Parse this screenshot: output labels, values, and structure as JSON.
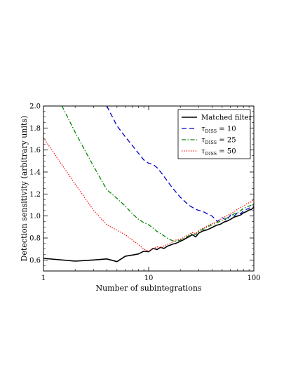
{
  "chart_data": {
    "type": "line",
    "title": "",
    "xlabel": "Number of subintegrations",
    "ylabel": "Detection sensitivity (arbitrary units)",
    "xscale": "log",
    "xlim": [
      1,
      100
    ],
    "ylim": [
      0.5,
      2.0
    ],
    "x_ticks": [
      1,
      10,
      100
    ],
    "x_tick_labels": [
      "1",
      "10",
      "100"
    ],
    "y_ticks": [
      0.6,
      0.8,
      1.0,
      1.2,
      1.4,
      1.6,
      1.8,
      2.0
    ],
    "y_tick_labels": [
      "0.6",
      "0.8",
      "1.0",
      "1.2",
      "1.4",
      "1.6",
      "1.8",
      "2.0"
    ],
    "legend_position": "top-right",
    "grid": false,
    "series": [
      {
        "name": "Matched filter",
        "legend_label": "Matched filter",
        "color": "#000000",
        "style": "solid",
        "x": [
          1,
          2,
          3,
          4,
          5,
          6,
          7,
          8,
          9,
          10,
          11,
          12,
          13,
          14,
          15,
          16,
          17,
          18,
          19,
          20,
          22,
          24,
          26,
          28,
          30,
          33,
          36,
          40,
          44,
          48,
          52,
          56,
          60,
          65,
          70,
          75,
          80,
          85,
          90,
          95,
          100
        ],
        "values": [
          0.615,
          0.59,
          0.6,
          0.61,
          0.585,
          0.635,
          0.645,
          0.655,
          0.68,
          0.675,
          0.705,
          0.695,
          0.715,
          0.705,
          0.725,
          0.735,
          0.745,
          0.75,
          0.76,
          0.77,
          0.79,
          0.81,
          0.83,
          0.81,
          0.845,
          0.865,
          0.875,
          0.895,
          0.915,
          0.925,
          0.945,
          0.955,
          0.97,
          0.99,
          1.0,
          1.01,
          1.03,
          1.04,
          1.055,
          1.06,
          1.08
        ]
      },
      {
        "name": "tau_DISS = 10",
        "legend_label": "τ",
        "legend_sub": "DISS",
        "legend_value": " = 10",
        "color": "#0000cc",
        "style": "dashed",
        "x": [
          4,
          5,
          6,
          7,
          8,
          9,
          10,
          11,
          12,
          13,
          14,
          15,
          17,
          20,
          24,
          28,
          33,
          36,
          40,
          45,
          50,
          55,
          60,
          65,
          70,
          75,
          80,
          85,
          90,
          95,
          100
        ],
        "values": [
          2.0,
          1.82,
          1.72,
          1.64,
          1.57,
          1.51,
          1.48,
          1.47,
          1.44,
          1.4,
          1.36,
          1.32,
          1.25,
          1.17,
          1.1,
          1.06,
          1.04,
          1.02,
          1.0,
          0.95,
          0.985,
          0.96,
          1.01,
          1.0,
          1.03,
          1.02,
          1.05,
          1.06,
          1.07,
          1.08,
          1.09
        ]
      },
      {
        "name": "tau_DISS = 25",
        "legend_label": "τ",
        "legend_sub": "DISS",
        "legend_value": " = 25",
        "color": "#008800",
        "style": "dashdot",
        "x": [
          1.5,
          2,
          3,
          4,
          5,
          6,
          7,
          8,
          9,
          10,
          11,
          12,
          13,
          14,
          15,
          16,
          17,
          18,
          20,
          22,
          24,
          26,
          28,
          30,
          33,
          36,
          40,
          45,
          50,
          55,
          60,
          65,
          70,
          75,
          80,
          85,
          90,
          95,
          100
        ],
        "values": [
          2.0,
          1.76,
          1.45,
          1.24,
          1.16,
          1.09,
          1.02,
          0.97,
          0.94,
          0.92,
          0.89,
          0.86,
          0.84,
          0.82,
          0.8,
          0.785,
          0.775,
          0.77,
          0.78,
          0.8,
          0.82,
          0.84,
          0.83,
          0.86,
          0.88,
          0.9,
          0.92,
          0.94,
          0.96,
          0.98,
          1.0,
          1.02,
          1.03,
          1.05,
          1.07,
          1.08,
          1.09,
          1.1,
          1.11
        ]
      },
      {
        "name": "tau_DISS = 50",
        "legend_label": "τ",
        "legend_sub": "DISS",
        "legend_value": " = 50",
        "color": "#ff0000",
        "style": "dotted",
        "x": [
          1,
          2,
          3,
          4,
          5,
          6,
          7,
          8,
          9,
          10,
          11,
          12,
          13,
          14,
          15,
          16,
          18,
          20,
          22,
          24,
          26,
          28,
          30,
          33,
          36,
          40,
          45,
          50,
          55,
          60,
          65,
          70,
          75,
          80,
          85,
          90,
          95,
          100
        ],
        "values": [
          1.71,
          1.29,
          1.05,
          0.92,
          0.87,
          0.83,
          0.78,
          0.74,
          0.7,
          0.68,
          0.7,
          0.72,
          0.71,
          0.73,
          0.74,
          0.75,
          0.78,
          0.79,
          0.81,
          0.83,
          0.85,
          0.84,
          0.87,
          0.89,
          0.91,
          0.93,
          0.95,
          0.98,
          1.0,
          1.02,
          1.04,
          1.06,
          1.08,
          1.09,
          1.11,
          1.12,
          1.13,
          1.15
        ]
      }
    ]
  }
}
